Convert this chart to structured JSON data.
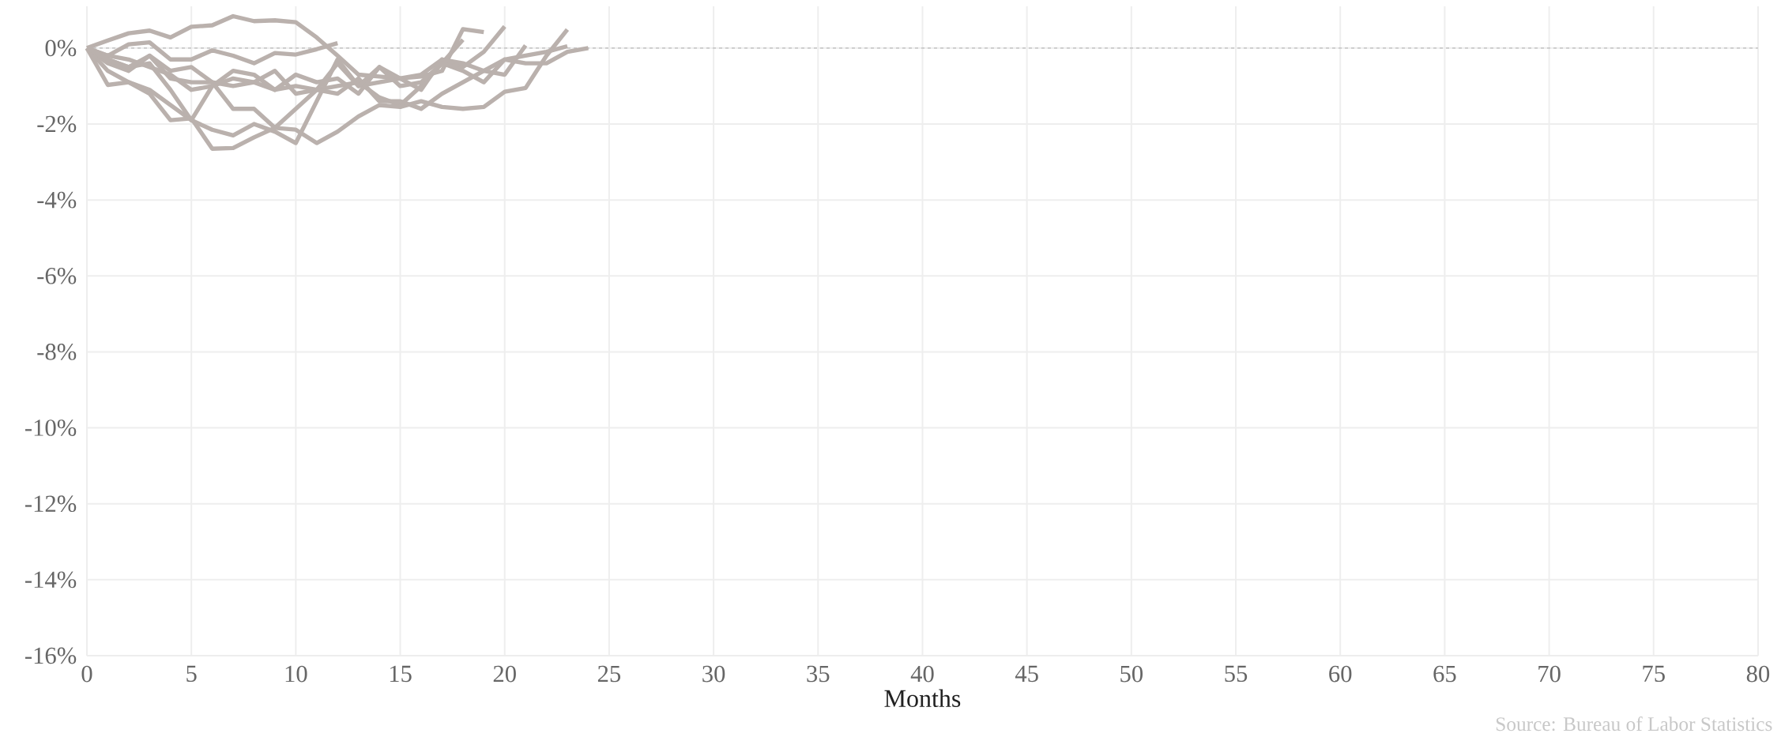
{
  "chart_data": {
    "type": "line",
    "xlabel": "Months",
    "x": [
      0,
      1,
      2,
      3,
      4,
      5,
      6,
      7,
      8,
      9,
      10,
      11,
      12,
      13,
      14,
      15,
      16,
      17,
      18,
      19,
      20,
      21,
      22,
      23,
      24
    ],
    "xlim": [
      0,
      80
    ],
    "xticks": [
      0,
      5,
      10,
      15,
      20,
      25,
      30,
      35,
      40,
      45,
      50,
      55,
      60,
      65,
      70,
      75,
      80
    ],
    "ylim": [
      -16,
      1.1
    ],
    "yticks": [
      {
        "value": 0,
        "label": "0%"
      },
      {
        "value": -2,
        "label": "-2%"
      },
      {
        "value": -4,
        "label": "-4%"
      },
      {
        "value": -6,
        "label": "-6%"
      },
      {
        "value": -8,
        "label": "-8%"
      },
      {
        "value": -10,
        "label": "-10%"
      },
      {
        "value": -12,
        "label": "-12%"
      },
      {
        "value": -14,
        "label": "-14%"
      },
      {
        "value": -16,
        "label": "-16%"
      }
    ],
    "grid": true,
    "series": [
      {
        "color": "#bab1ad",
        "values": [
          0,
          -0.2,
          0.1,
          0.15,
          -0.3,
          -0.3,
          -0.06,
          -0.2,
          -0.4,
          -0.13,
          -0.17,
          -0.03,
          0.13,
          null,
          null,
          null,
          null,
          null,
          null,
          null,
          null,
          null,
          null,
          null,
          null
        ]
      },
      {
        "color": "#bab1ad",
        "values": [
          0,
          0.2,
          0.39,
          0.46,
          0.28,
          0.56,
          0.6,
          0.84,
          0.71,
          0.73,
          0.68,
          0.28,
          -0.2,
          -0.7,
          -0.75,
          -0.8,
          -0.75,
          -0.6,
          0.5,
          0.42,
          null,
          null,
          null,
          null,
          null
        ]
      },
      {
        "color": "#bab1ad",
        "values": [
          0,
          -0.4,
          -0.6,
          -0.2,
          -0.8,
          -0.9,
          -0.9,
          -1.0,
          -0.9,
          -1.1,
          -1.0,
          -1.1,
          -1.0,
          -0.9,
          -1.3,
          -1.5,
          -1.0,
          -0.4,
          0.22,
          null,
          null,
          null,
          null,
          null,
          null
        ]
      },
      {
        "color": "#bab1ad",
        "values": [
          0,
          -0.6,
          -0.9,
          -1.1,
          -1.5,
          -1.9,
          -2.15,
          -2.3,
          -2.0,
          -2.2,
          -2.5,
          -1.4,
          -0.3,
          -1.0,
          -0.9,
          -0.8,
          -0.7,
          -0.3,
          -0.5,
          -0.1,
          0.57,
          null,
          null,
          null,
          null
        ]
      },
      {
        "color": "#bab1ad",
        "values": [
          0,
          -0.3,
          -0.5,
          -0.4,
          -1.1,
          -1.9,
          -1.0,
          -0.6,
          -0.7,
          -1.1,
          -0.7,
          -0.9,
          -0.8,
          -1.2,
          -0.5,
          -0.8,
          -1.1,
          -0.3,
          -0.4,
          -0.6,
          -0.7,
          0.07,
          null,
          null,
          null
        ]
      },
      {
        "color": "#bab1ad",
        "values": [
          0,
          -0.97,
          -0.9,
          -1.2,
          -1.9,
          -1.85,
          -2.65,
          -2.63,
          -2.35,
          -2.1,
          -2.15,
          -2.5,
          -2.2,
          -1.8,
          -1.5,
          -1.55,
          -1.4,
          -1.55,
          -1.6,
          -1.55,
          -1.15,
          -1.05,
          -0.2,
          0.49,
          null
        ]
      },
      {
        "color": "#bab1ad",
        "values": [
          0,
          -0.2,
          -0.3,
          -0.5,
          -0.7,
          -1.1,
          -1.0,
          -0.8,
          -0.9,
          -0.6,
          -1.2,
          -1.1,
          -1.2,
          -0.8,
          -1.4,
          -1.4,
          -1.6,
          -1.2,
          -0.9,
          -0.6,
          -0.3,
          -0.2,
          -0.1,
          0.05,
          null
        ]
      },
      {
        "color": "#bab1ad",
        "values": [
          0,
          -0.3,
          -0.5,
          -0.2,
          -0.6,
          -0.5,
          -0.9,
          -1.6,
          -1.6,
          -2.1,
          -1.6,
          -1.1,
          -0.4,
          -1.0,
          -0.5,
          -1.0,
          -0.9,
          -0.4,
          -0.6,
          -0.9,
          -0.3,
          -0.4,
          -0.4,
          -0.1,
          0.0
        ]
      }
    ],
    "ref_lines": [
      {
        "axis": "y",
        "value": 0,
        "color": "#bbbbbb",
        "line_style": "dashed"
      }
    ],
    "annotations": [
      "Source: Bureau of Labor Statistics"
    ]
  }
}
